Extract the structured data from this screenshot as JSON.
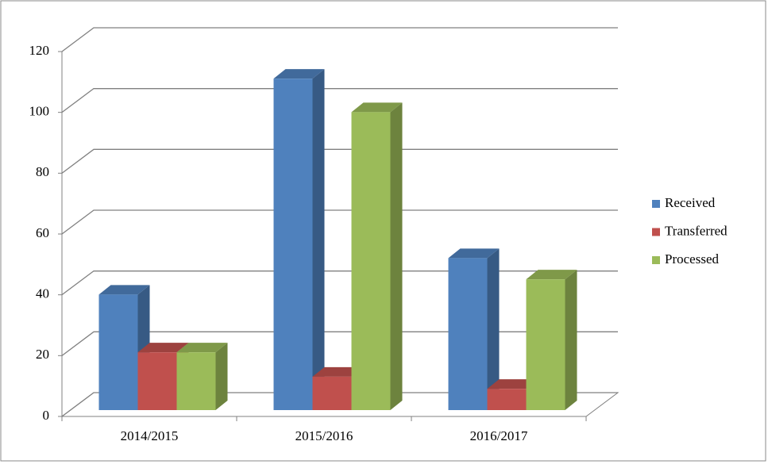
{
  "chart_data": {
    "type": "bar",
    "three_d": true,
    "categories": [
      "2014/2015",
      "2015/2016",
      "2016/2017"
    ],
    "series": [
      {
        "name": "Received",
        "color": "#4f81bd",
        "values": [
          38,
          109,
          50
        ]
      },
      {
        "name": "Transferred",
        "color": "#c0504d",
        "values": [
          19,
          11,
          7
        ]
      },
      {
        "name": "Processed",
        "color": "#9bbb59",
        "values": [
          19,
          98,
          43
        ]
      }
    ],
    "ylim": [
      0,
      120
    ],
    "yticks": [
      0,
      20,
      40,
      60,
      80,
      100,
      120
    ],
    "grid": true,
    "legend": "right"
  }
}
